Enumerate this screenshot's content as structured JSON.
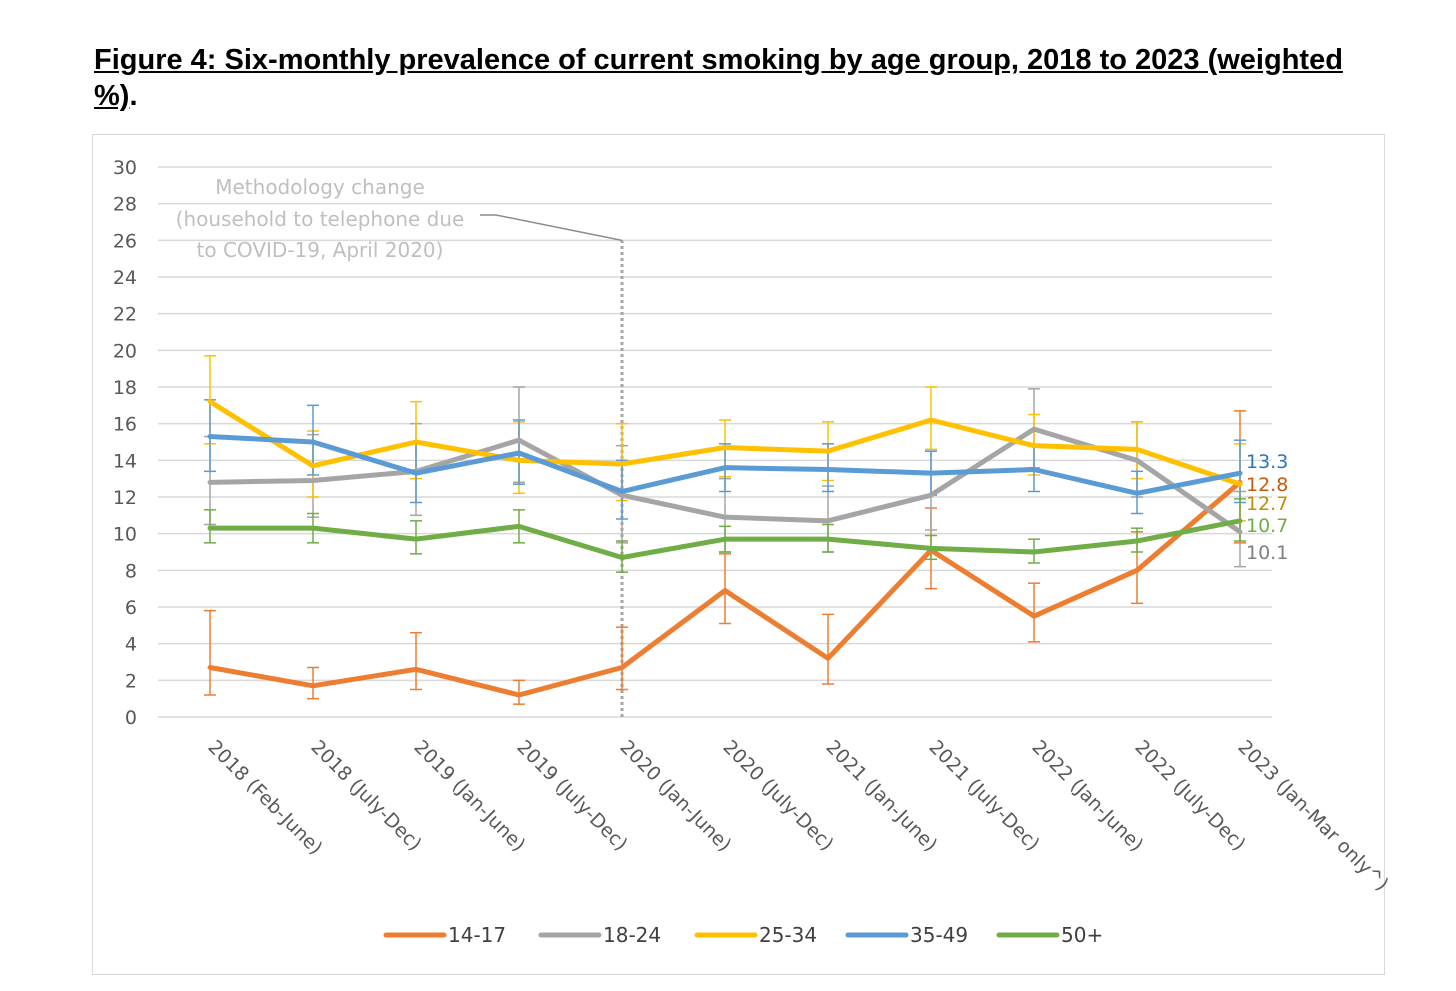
{
  "figure_title": "Figure 4: Six-monthly prevalence of current smoking by age group, 2018 to 2023 (weighted %)",
  "figure_title_suffix": ".",
  "chart_data": {
    "type": "line",
    "title": "Figure 4: Six-monthly prevalence of current smoking by age group, 2018 to 2023 (weighted %).",
    "xlabel": "",
    "ylabel": "",
    "ylim": [
      0,
      30
    ],
    "yticks": [
      0,
      2,
      4,
      6,
      8,
      10,
      12,
      14,
      16,
      18,
      20,
      22,
      24,
      26,
      28,
      30
    ],
    "grid": true,
    "legend_position": "bottom",
    "categories": [
      "2018 (Feb-June)",
      "2018 (July-Dec)",
      "2019 (Jan-June)",
      "2019 (July-Dec)",
      "2020 (Jan-June)",
      "2020 (July-Dec)",
      "2021 (Jan-June)",
      "2021 (July-Dec)",
      "2022 (Jan-June)",
      "2022 (July-Dec)",
      "2023 (Jan-Mar only^)"
    ],
    "series": [
      {
        "name": "14-17",
        "color": "#ed7d31",
        "values": [
          2.7,
          1.7,
          2.6,
          1.2,
          2.7,
          6.9,
          3.2,
          9.1,
          5.5,
          8.0,
          12.8
        ],
        "err_low": [
          1.2,
          1.0,
          1.5,
          0.7,
          1.5,
          5.1,
          1.8,
          7.0,
          4.1,
          6.2,
          9.5
        ],
        "err_high": [
          5.8,
          2.7,
          4.6,
          2.0,
          4.9,
          8.9,
          5.6,
          11.4,
          7.3,
          10.1,
          16.7
        ],
        "end_label": "12.8",
        "end_label_color": "#c55a11"
      },
      {
        "name": "18-24",
        "color": "#a5a5a5",
        "values": [
          12.8,
          12.9,
          13.4,
          15.1,
          12.1,
          10.9,
          10.7,
          12.1,
          15.7,
          14.0,
          10.1
        ],
        "err_low": [
          10.5,
          10.9,
          11.0,
          12.8,
          9.5,
          9.0,
          9.0,
          10.2,
          13.6,
          12.0,
          8.2
        ],
        "err_high": [
          15.3,
          15.4,
          16.0,
          18.0,
          14.8,
          13.0,
          12.6,
          14.5,
          17.9,
          16.1,
          12.3
        ],
        "end_label": "10.1",
        "end_label_color": "#7f7f7f"
      },
      {
        "name": "25-34",
        "color": "#ffc000",
        "values": [
          17.2,
          13.7,
          15.0,
          14.0,
          13.8,
          14.7,
          14.5,
          16.2,
          14.8,
          14.6,
          12.7
        ],
        "err_low": [
          14.9,
          12.0,
          13.0,
          12.2,
          11.8,
          13.1,
          12.9,
          14.6,
          13.2,
          13.0,
          10.7
        ],
        "err_high": [
          19.7,
          15.6,
          17.2,
          16.1,
          16.0,
          16.2,
          16.1,
          18.0,
          16.5,
          16.1,
          14.9
        ],
        "end_label": "12.7",
        "end_label_color": "#bf8f00"
      },
      {
        "name": "35-49",
        "color": "#5b9bd5",
        "values": [
          15.3,
          15.0,
          13.3,
          14.4,
          12.3,
          13.6,
          13.5,
          13.3,
          13.5,
          12.2,
          13.3
        ],
        "err_low": [
          13.4,
          13.2,
          11.7,
          12.7,
          10.8,
          12.3,
          12.3,
          12.1,
          12.3,
          11.1,
          11.7
        ],
        "err_high": [
          17.3,
          17.0,
          15.0,
          16.2,
          14.0,
          14.9,
          14.9,
          14.5,
          14.8,
          13.4,
          15.1
        ],
        "end_label": "13.3",
        "end_label_color": "#2e75b6"
      },
      {
        "name": "50+",
        "color": "#70ad47",
        "values": [
          10.3,
          10.3,
          9.7,
          10.4,
          8.7,
          9.7,
          9.7,
          9.2,
          9.0,
          9.6,
          10.7
        ],
        "err_low": [
          9.5,
          9.5,
          8.9,
          9.5,
          7.9,
          9.0,
          9.0,
          8.6,
          8.4,
          9.0,
          9.6
        ],
        "err_high": [
          11.3,
          11.1,
          10.7,
          11.3,
          9.6,
          10.4,
          10.5,
          9.9,
          9.7,
          10.3,
          11.9
        ],
        "end_label": "10.7",
        "end_label_color": "#70ad47"
      }
    ],
    "annotation": {
      "lines": [
        "Methodology change",
        "(household to telephone due",
        "to COVID-19, April 2020)"
      ],
      "category_index": 4,
      "marker_from": 0,
      "marker_to": 26
    }
  }
}
